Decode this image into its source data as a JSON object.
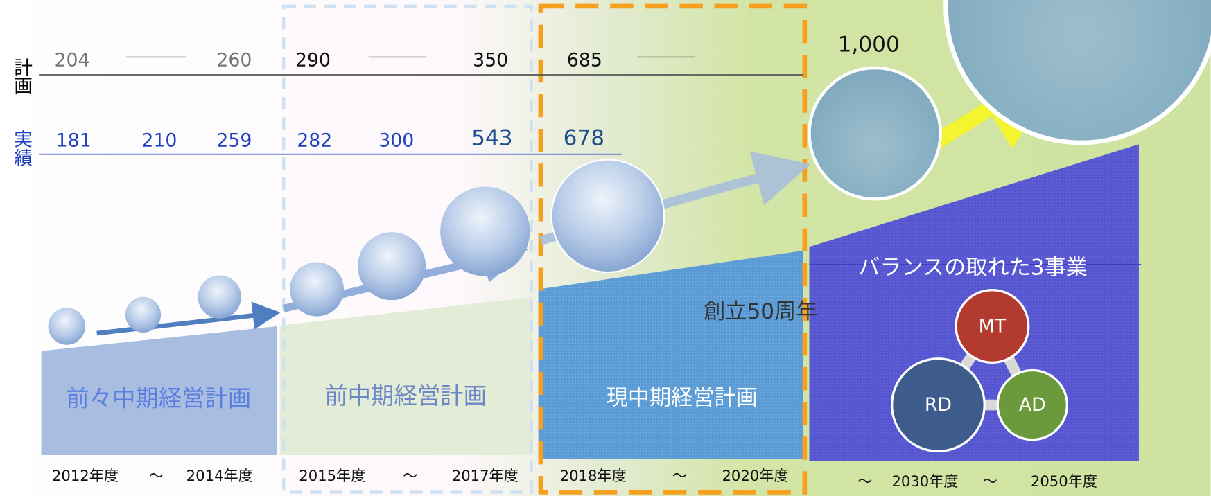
{
  "row_labels": {
    "plan": "計画",
    "actual": "実績"
  },
  "plan_values": [
    "204",
    "260",
    "290",
    "350",
    "685",
    "1,000"
  ],
  "actual_values": [
    "181",
    "210",
    "259",
    "282",
    "300",
    "543",
    "678"
  ],
  "phases": [
    {
      "name": "前々中期経営計画",
      "period": [
        "2012年度",
        "〜",
        "2014年度"
      ]
    },
    {
      "name": "前中期経営計画",
      "period": [
        "2015年度",
        "〜",
        "2017年度"
      ]
    },
    {
      "name": "現中期経営計画",
      "period": [
        "2018年度",
        "〜",
        "2020年度"
      ]
    },
    {
      "name": "バランスの取れた3事業",
      "period": [
        "〜",
        "2030年度",
        "〜",
        "2050年度"
      ]
    }
  ],
  "milestone": "創立50周年",
  "businesses": [
    "MT",
    "RD",
    "AD"
  ]
}
